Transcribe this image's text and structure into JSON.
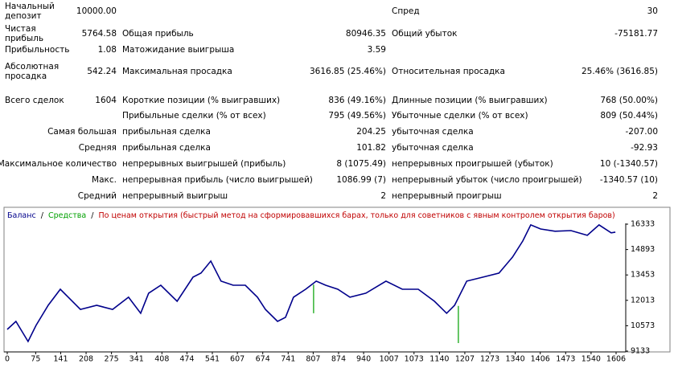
{
  "table": {
    "rows": [
      [
        "Начальный депозит",
        "10000.00",
        null,
        null,
        "Спред",
        "30"
      ],
      [
        "Чистая прибыль",
        "5764.58",
        "Общая прибыль",
        "80946.35",
        "Общий убыток",
        "-75181.77"
      ],
      [
        "Прибыльность",
        "1.08",
        "Матожидание выигрыша",
        "3.59",
        null,
        null
      ],
      [
        "Абсолютная просадка",
        "542.24",
        "Максимальная просадка",
        "3616.85 (25.46%)",
        "Относительная просадка",
        "25.46% (3616.85)"
      ],
      [
        "Всего сделок",
        "1604",
        "Короткие позиции (% выигравших)",
        "836 (49.16%)",
        "Длинные позиции (% выигравших)",
        "768 (50.00%)"
      ],
      [
        null,
        null,
        "Прибыльные сделки (% от всех)",
        "795 (49.56%)",
        "Убыточные сделки (% от всех)",
        "809 (50.44%)"
      ],
      [
        "Самая большая",
        null,
        "прибыльная сделка",
        "204.25",
        "убыточная сделка",
        "-207.00"
      ],
      [
        "Средняя",
        null,
        "прибыльная сделка",
        "101.82",
        "убыточная сделка",
        "-92.93"
      ],
      [
        "Максимальное количество",
        null,
        "непрерывных выигрышей (прибыль)",
        "8 (1075.49)",
        "непрерывных проигрышей (убыток)",
        "10 (-1340.57)"
      ],
      [
        "Макс.",
        null,
        "непрерывная прибыль (число выигрышей)",
        "1086.99 (7)",
        "непрерывный убыток (число проигрышей)",
        "-1340.57 (10)"
      ],
      [
        "Средний",
        null,
        "непрерывный выигрыш",
        "2",
        "непрерывный проигрыш",
        "2"
      ]
    ]
  },
  "chart_data": {
    "type": "line",
    "legend_separator": "/",
    "model": "По ценам открытия (быстрый метод на сформировавшихся барах, только для советников с явным контролем открытия баров)",
    "model_color": "#c00000",
    "xlim": [
      0,
      1606
    ],
    "xticks": [
      0,
      75,
      141,
      208,
      275,
      341,
      408,
      474,
      541,
      607,
      674,
      741,
      807,
      874,
      940,
      1007,
      1073,
      1140,
      1207,
      1273,
      1340,
      1406,
      1473,
      1540,
      1606
    ],
    "ylim": [
      9133,
      16333
    ],
    "yticks": [
      9133,
      10573,
      12013,
      13453,
      14893,
      16333
    ],
    "series": [
      {
        "name": "Баланс",
        "color": "#00008b",
        "x": [
          0,
          23,
          55,
          76,
          108,
          140,
          161,
          193,
          236,
          278,
          320,
          352,
          373,
          405,
          448,
          490,
          511,
          537,
          564,
          596,
          628,
          660,
          681,
          713,
          734,
          755,
          787,
          815,
          840,
          872,
          904,
          946,
          999,
          1042,
          1084,
          1127,
          1159,
          1180,
          1212,
          1255,
          1297,
          1333,
          1360,
          1381,
          1407,
          1445,
          1487,
          1530,
          1561,
          1593,
          1604
        ],
        "values": [
          10365,
          10820,
          9680,
          10590,
          11730,
          12640,
          12190,
          11500,
          11730,
          11500,
          12190,
          11280,
          12420,
          12870,
          11960,
          13330,
          13560,
          14240,
          13100,
          12870,
          12870,
          12190,
          11500,
          10820,
          11050,
          12190,
          12640,
          13100,
          12870,
          12640,
          12190,
          12420,
          13100,
          12640,
          12640,
          11960,
          11280,
          11730,
          13100,
          13330,
          13560,
          14470,
          15380,
          16290,
          16060,
          15930,
          15970,
          15700,
          16290,
          15840,
          15880
        ]
      },
      {
        "name": "Средства",
        "color": "#00a000",
        "x": [
          808,
          808,
          1000,
          1190,
          1190
        ],
        "values": [
          12900,
          11280,
          null,
          11700,
          9590
        ]
      }
    ]
  }
}
